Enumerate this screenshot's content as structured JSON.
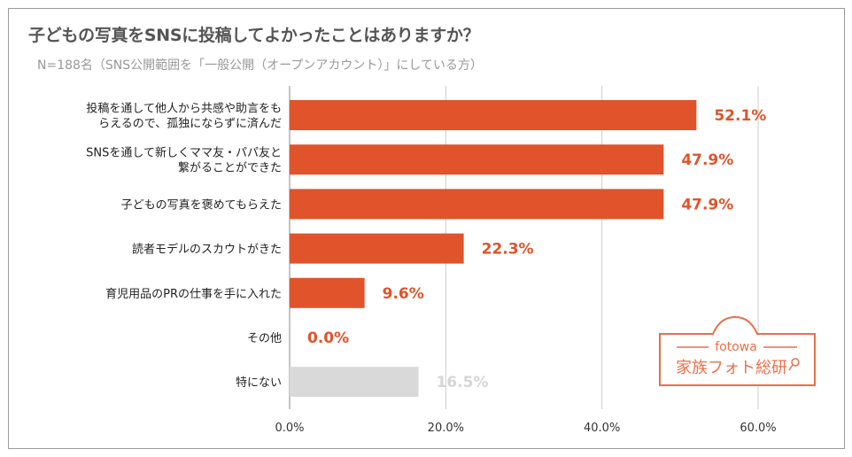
{
  "chart_data": {
    "type": "bar",
    "orientation": "horizontal",
    "title": "子どもの写真をSNSに投稿してよかったことはありますか？",
    "subtitle": "N=188名（SNS公開範囲を「一般公開（オープンアカウント）」にしている方）",
    "categories": [
      [
        "投稿を通して他人から共感や助言をも",
        "らえるので、孤独にならずに済んだ"
      ],
      [
        "SNSを通して新しくママ友・パパ友と",
        "繋がることができた"
      ],
      [
        "子どもの写真を褒めてもらえた"
      ],
      [
        "読者モデルのスカウトがきた"
      ],
      [
        "育児用品のPRの仕事を手に入れた"
      ],
      [
        "その他"
      ],
      [
        "特にない"
      ]
    ],
    "values": [
      52.1,
      47.9,
      47.9,
      22.3,
      9.6,
      0.0,
      16.5
    ],
    "data_labels": [
      "52.1%",
      "47.9%",
      "47.9%",
      "22.3%",
      "9.6%",
      "0.0%",
      "16.5%"
    ],
    "bar_colors": [
      "#E0532B",
      "#E0532B",
      "#E0532B",
      "#E0532B",
      "#E0532B",
      "#E0532B",
      "#D9D9D9"
    ],
    "label_colors": [
      "#E0532B",
      "#E0532B",
      "#E0532B",
      "#E0532B",
      "#E0532B",
      "#E0532B",
      "#D6D6D6"
    ],
    "xlim": [
      0,
      60
    ],
    "xticks": [
      0,
      20,
      40,
      60
    ],
    "xtick_labels": [
      "0.0%",
      "20.0%",
      "40.0%",
      "60.0%"
    ],
    "grid": "vertical",
    "xlabel": "",
    "ylabel": ""
  },
  "logo": {
    "brand": "fotowa",
    "name": "家族フォト総研",
    "color": "#E8704A"
  }
}
